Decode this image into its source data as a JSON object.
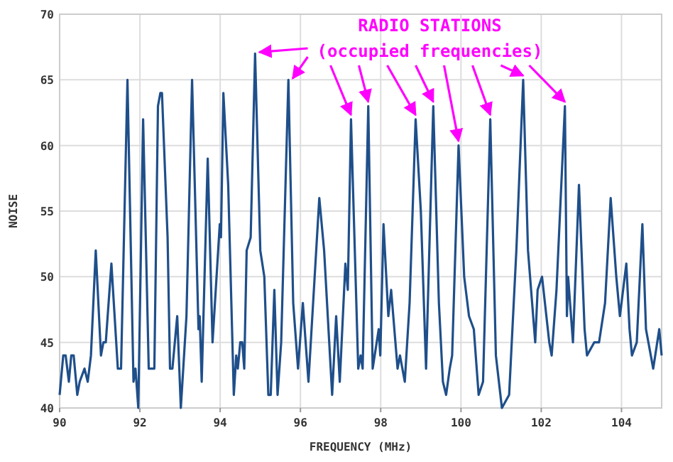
{
  "chart_data": {
    "type": "line",
    "xlabel": "FREQUENCY (MHz)",
    "ylabel": "NOISE",
    "annotations": [
      "RADIO STATIONS",
      {
        "text": "(occupied frequencies)",
        "x": 94.87,
        "y": 67
      }
    ],
    "xlim": [
      90,
      105
    ],
    "xticks": [
      90,
      92,
      94,
      96,
      98,
      100,
      102,
      104
    ],
    "ylim": [
      40,
      70
    ],
    "yticks": [
      40,
      45,
      50,
      55,
      60,
      65,
      70
    ],
    "grid": true,
    "marker": "none",
    "line_style": "solid",
    "series": [
      {
        "color": "#1f4f8a",
        "x": [
          90.0,
          90.09,
          90.15,
          90.23,
          90.29,
          90.35,
          90.44,
          90.5,
          90.62,
          90.7,
          90.78,
          90.9,
          91.03,
          91.09,
          91.15,
          91.29,
          91.45,
          91.53,
          91.69,
          91.84,
          91.89,
          91.96,
          92.08,
          92.22,
          92.36,
          92.45,
          92.51,
          92.55,
          92.69,
          92.75,
          92.81,
          92.93,
          93.02,
          93.16,
          93.3,
          93.46,
          93.49,
          93.54,
          93.69,
          93.81,
          93.99,
          94.02,
          94.08,
          94.2,
          94.34,
          94.4,
          94.44,
          94.5,
          94.55,
          94.6,
          94.66,
          94.76,
          94.87,
          95.0,
          95.1,
          95.2,
          95.26,
          95.35,
          95.43,
          95.52,
          95.7,
          95.82,
          95.94,
          96.06,
          96.2,
          96.47,
          96.59,
          96.79,
          96.89,
          96.98,
          97.12,
          97.18,
          97.26,
          97.44,
          97.5,
          97.55,
          97.69,
          97.8,
          97.95,
          97.99,
          98.07,
          98.19,
          98.26,
          98.42,
          98.48,
          98.6,
          98.72,
          98.87,
          99.0,
          99.13,
          99.31,
          99.45,
          99.55,
          99.63,
          99.72,
          99.78,
          99.94,
          100.08,
          100.2,
          100.32,
          100.44,
          100.55,
          100.73,
          100.87,
          101.02,
          101.2,
          101.38,
          101.55,
          101.67,
          101.85,
          101.91,
          102.02,
          102.2,
          102.26,
          102.38,
          102.59,
          102.64,
          102.67,
          102.79,
          102.94,
          103.08,
          103.14,
          103.32,
          103.44,
          103.59,
          103.73,
          103.87,
          103.96,
          104.12,
          104.2,
          104.26,
          104.38,
          104.52,
          104.61,
          104.79,
          104.94,
          105.0
        ],
        "values": [
          41,
          44,
          44,
          42,
          44,
          44,
          41,
          42,
          43,
          42,
          44,
          52,
          44,
          45,
          45,
          51,
          43,
          43,
          65,
          42,
          43,
          40,
          62,
          43,
          43,
          63,
          64,
          64,
          53,
          43,
          43,
          47,
          40,
          47,
          65,
          46,
          47,
          42,
          59,
          45,
          54,
          53,
          64,
          57,
          41,
          44,
          43,
          45,
          45,
          43,
          52,
          53,
          67,
          52,
          50,
          41,
          41,
          49,
          41,
          45,
          65,
          48,
          43,
          48,
          42,
          56,
          52,
          41,
          47,
          42,
          51,
          49,
          62,
          43,
          44,
          43,
          63,
          43,
          46,
          44,
          54,
          47,
          49,
          43,
          44,
          42,
          48,
          62,
          55,
          43,
          63,
          48,
          42,
          41,
          43,
          44,
          60,
          50,
          47,
          46,
          41,
          42,
          62,
          44,
          40,
          41,
          52,
          65,
          52,
          45,
          49,
          50,
          45,
          44,
          49,
          63,
          47,
          50,
          45,
          57,
          46,
          44,
          45,
          45,
          48,
          56,
          50,
          47,
          51,
          46,
          44,
          45,
          54,
          46,
          43,
          46,
          44
        ]
      }
    ]
  }
}
